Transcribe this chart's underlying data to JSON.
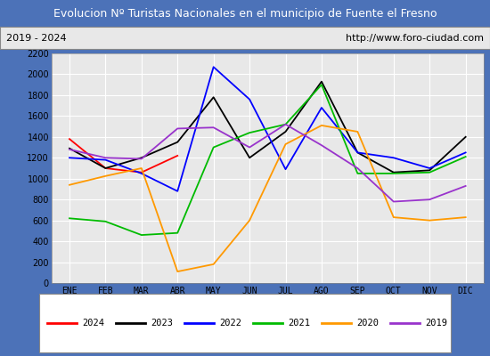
{
  "title": "Evolucion Nº Turistas Nacionales en el municipio de Fuente el Fresno",
  "subtitle_left": "2019 - 2024",
  "subtitle_right": "http://www.foro-ciudad.com",
  "months": [
    "ENE",
    "FEB",
    "MAR",
    "ABR",
    "MAY",
    "JUN",
    "JUL",
    "AGO",
    "SEP",
    "OCT",
    "NOV",
    "DIC"
  ],
  "series": {
    "2024": {
      "color": "#ff0000",
      "data": [
        1380,
        1100,
        1060,
        1220,
        null,
        null,
        null,
        null,
        null,
        null,
        null,
        null
      ]
    },
    "2023": {
      "color": "#000000",
      "data": [
        1290,
        1100,
        1200,
        1350,
        1780,
        1200,
        1450,
        1930,
        1250,
        1060,
        1080,
        1400
      ]
    },
    "2022": {
      "color": "#0000ff",
      "data": [
        1200,
        1180,
        1050,
        880,
        2070,
        1760,
        1090,
        1680,
        1250,
        1200,
        1100,
        1250
      ]
    },
    "2021": {
      "color": "#00bb00",
      "data": [
        620,
        590,
        460,
        480,
        1300,
        1440,
        1520,
        1900,
        1050,
        1050,
        1060,
        1210
      ]
    },
    "2020": {
      "color": "#ff9900",
      "data": [
        940,
        1025,
        1100,
        110,
        180,
        600,
        1330,
        1510,
        1450,
        630,
        600,
        630
      ]
    },
    "2019": {
      "color": "#9933cc",
      "data": [
        1280,
        1200,
        1190,
        1480,
        1490,
        1300,
        1520,
        1320,
        1100,
        780,
        800,
        930
      ]
    }
  },
  "ylim": [
    0,
    2200
  ],
  "yticks": [
    0,
    200,
    400,
    600,
    800,
    1000,
    1200,
    1400,
    1600,
    1800,
    2000,
    2200
  ],
  "title_bg_color": "#4c72b8",
  "title_font_color": "#ffffff",
  "plot_bg_color": "#e8e8e8",
  "grid_color": "#ffffff",
  "border_color": "#4c72b8"
}
